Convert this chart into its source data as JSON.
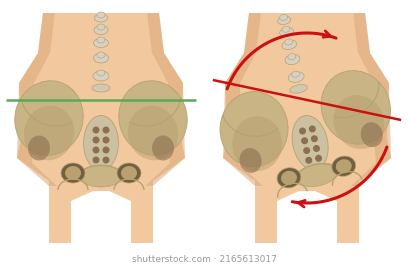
{
  "background_color": "#ffffff",
  "skin_color": "#f2c99e",
  "skin_edge": "#e8b87a",
  "skin_shadow": "#dba878",
  "skin_inner": "#f5d8b8",
  "bone_main": "#c8b485",
  "bone_light": "#ddd0a8",
  "bone_mid": "#b8a070",
  "bone_dark": "#8a7050",
  "bone_shadow": "#706040",
  "sacrum_light": "#ccc0a0",
  "spine_light": "#d8d0c0",
  "green_color": "#5aaa55",
  "red_color": "#cc1010",
  "wm_color": "#999999",
  "wm_text": "shutterstock.com · 2165613017",
  "wm_fs": 6.5,
  "figsize": [
    4.09,
    2.8
  ],
  "dpi": 100
}
